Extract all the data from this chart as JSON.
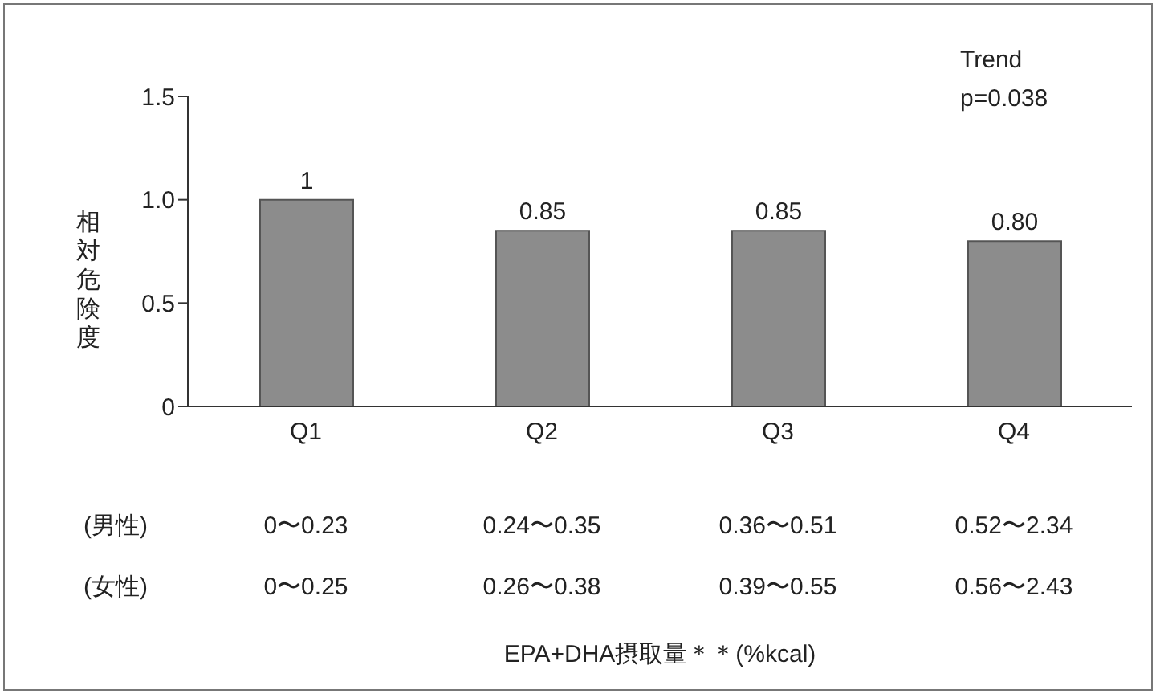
{
  "chart_data": {
    "type": "bar",
    "ylabel": "相対危険度",
    "categories": [
      "Q1",
      "Q2",
      "Q3",
      "Q4"
    ],
    "values": [
      1,
      0.85,
      0.85,
      0.8
    ],
    "value_labels": [
      "1",
      "0.85",
      "0.85",
      "0.80"
    ],
    "color": "#8c8c8c",
    "ylim": [
      0,
      1.5
    ],
    "yticks": [
      0,
      {
        "value": 0.5,
        "label": "0.5"
      },
      {
        "value": 1,
        "label": "1.0"
      },
      {
        "value": 1.5,
        "label": "1.5"
      }
    ],
    "grid": false,
    "legend": false,
    "annotations": [
      "Trend\np=0.038",
      "(男性)",
      "0〜0.23",
      "0.24〜0.35",
      "0.36〜0.51",
      "0.52〜2.34",
      "(女性)",
      "0〜0.25",
      "0.26〜0.38",
      "0.39〜0.55",
      "0.56〜2.43",
      "EPA+DHA摂取量＊＊(%kcal)"
    ]
  }
}
